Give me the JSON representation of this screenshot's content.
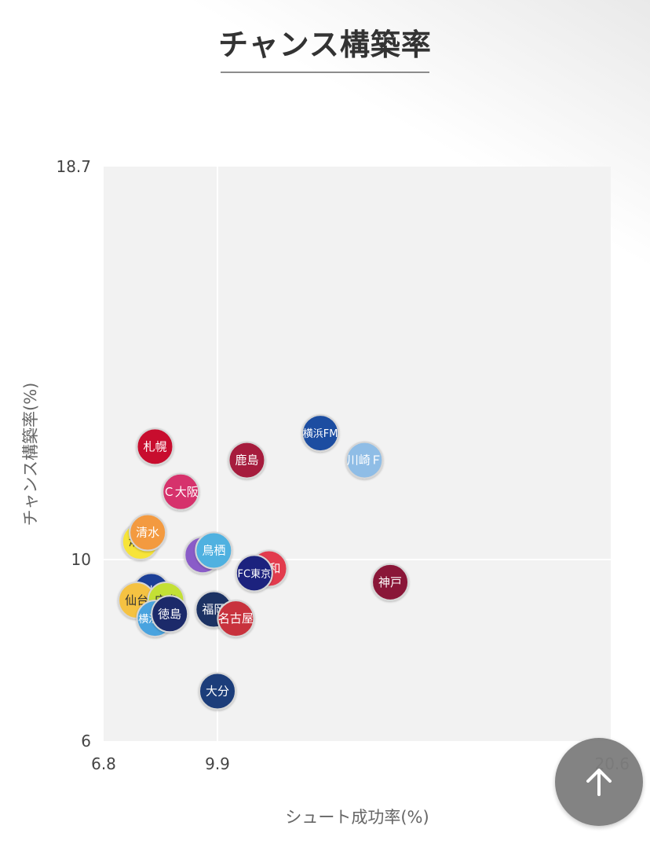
{
  "title": "チャンス構築率",
  "chart_data": {
    "type": "scatter",
    "title": "チャンス構築率",
    "xlabel": "シュート成功率(%)",
    "ylabel": "チャンス構築率(%)",
    "xlim": [
      6.8,
      20.6
    ],
    "ylim": [
      6,
      18.7
    ],
    "x_ticks": [
      "6.8",
      "9.9",
      "20.6"
    ],
    "y_ticks": [
      "18.7",
      "10",
      "6"
    ],
    "reference_lines": {
      "x": 9.9,
      "y": 10
    },
    "points": [
      {
        "label": "札幌",
        "x": 8.2,
        "y": 12.5,
        "color": "#c8102e",
        "text_color": "#ffffff"
      },
      {
        "label": "鹿島",
        "x": 10.7,
        "y": 12.2,
        "color": "#a61c3c",
        "text_color": "#ffffff"
      },
      {
        "label": "横浜FM",
        "x": 12.7,
        "y": 12.8,
        "color": "#1d4ea1",
        "text_color": "#ffffff"
      },
      {
        "label": "川崎Ｆ",
        "x": 13.9,
        "y": 12.2,
        "color": "#8fbde6",
        "text_color": "#ffffff"
      },
      {
        "label": "Ｃ大阪",
        "x": 8.9,
        "y": 11.5,
        "color": "#d6336c",
        "text_color": "#ffffff"
      },
      {
        "label": "湘南",
        "x": 7.8,
        "y": 10.4,
        "color": "#f7e437",
        "text_color": "#333333"
      },
      {
        "label": "清水",
        "x": 8.0,
        "y": 10.6,
        "color": "#f39a3f",
        "text_color": "#ffffff"
      },
      {
        "label": "柏",
        "x": 9.5,
        "y": 10.1,
        "color": "#8a5cc8",
        "text_color": "#ffffff"
      },
      {
        "label": "鳥栖",
        "x": 9.8,
        "y": 10.2,
        "color": "#4fb1e0",
        "text_color": "#ffffff"
      },
      {
        "label": "浦和",
        "x": 11.3,
        "y": 9.8,
        "color": "#e23b4e",
        "text_color": "#ffffff"
      },
      {
        "label": "FC東京",
        "x": 10.9,
        "y": 9.7,
        "color": "#1a237e",
        "text_color": "#ffffff"
      },
      {
        "label": "神戸",
        "x": 14.6,
        "y": 9.5,
        "color": "#8a1538",
        "text_color": "#ffffff"
      },
      {
        "label": "Ｇ大阪",
        "x": 8.1,
        "y": 9.3,
        "color": "#1f3f98",
        "text_color": "#ffffff"
      },
      {
        "label": "仙台",
        "x": 7.7,
        "y": 9.1,
        "color": "#f5c242",
        "text_color": "#333333"
      },
      {
        "label": "広島",
        "x": 8.5,
        "y": 9.1,
        "color": "#c3e034",
        "text_color": "#333333"
      },
      {
        "label": "横浜FC",
        "x": 8.2,
        "y": 8.7,
        "color": "#4aa3df",
        "text_color": "#ffffff"
      },
      {
        "label": "徳島",
        "x": 8.6,
        "y": 8.8,
        "color": "#1a2b6b",
        "text_color": "#ffffff"
      },
      {
        "label": "福岡",
        "x": 9.8,
        "y": 8.9,
        "color": "#1f3364",
        "text_color": "#ffffff"
      },
      {
        "label": "名古屋",
        "x": 10.4,
        "y": 8.7,
        "color": "#c8323c",
        "text_color": "#ffffff"
      },
      {
        "label": "大分",
        "x": 9.9,
        "y": 7.1,
        "color": "#1c3c7a",
        "text_color": "#ffffff"
      }
    ]
  },
  "ui": {
    "scroll_top_icon": "arrow-up-icon"
  }
}
